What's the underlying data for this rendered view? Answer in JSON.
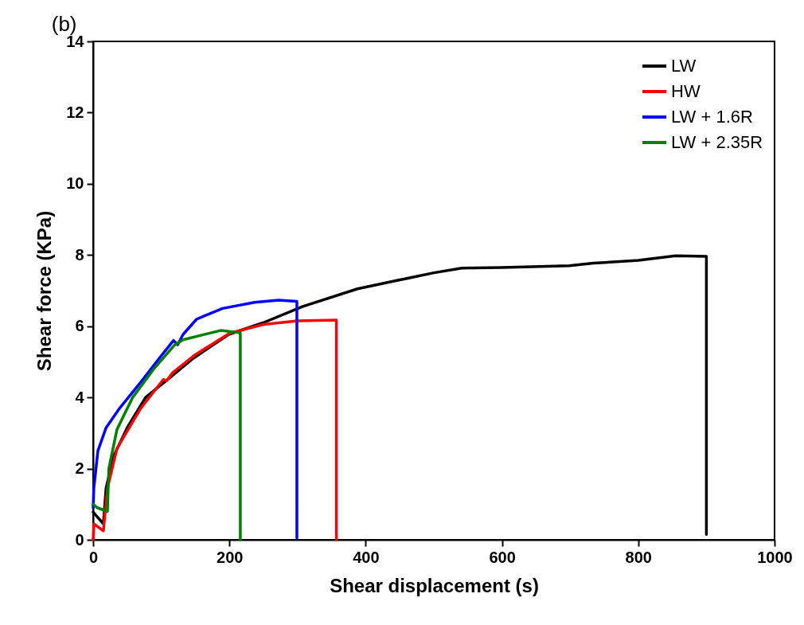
{
  "chart_data": {
    "type": "line",
    "title": "(b)",
    "xlabel": "Shear displacement (s)",
    "ylabel": "Shear force (KPa)",
    "xlim": [
      0,
      1000
    ],
    "ylim": [
      0,
      14
    ],
    "xticks": [
      0,
      200,
      400,
      600,
      800,
      1000
    ],
    "yticks": [
      0,
      2,
      4,
      6,
      8,
      10,
      12,
      14
    ],
    "grid": false,
    "legend": "top right",
    "marker": "none",
    "line_style": "solid",
    "series": [
      {
        "name": "LW",
        "color": "#000000",
        "x": [
          0,
          15,
          19,
          30,
          50,
          77,
          109,
          147,
          199,
          250,
          307,
          388,
          450,
          500,
          541,
          600,
          699,
          734,
          800,
          855,
          900,
          900
        ],
        "values": [
          0.78,
          0.45,
          1.45,
          2.35,
          3.15,
          4.0,
          4.5,
          5.1,
          5.77,
          6.1,
          6.55,
          7.05,
          7.3,
          7.5,
          7.63,
          7.65,
          7.7,
          7.77,
          7.85,
          7.98,
          7.96,
          0.15
        ]
      },
      {
        "name": "HW",
        "color": "#ff0000",
        "x": [
          0,
          1,
          15,
          21,
          35,
          70,
          103,
          108,
          117,
          150,
          200,
          250,
          300,
          357,
          357
        ],
        "values": [
          0,
          0.45,
          0.25,
          1.45,
          2.57,
          3.7,
          4.5,
          4.47,
          4.7,
          5.2,
          5.8,
          6.05,
          6.15,
          6.17,
          0
        ]
      },
      {
        "name": "LW + 1.6R",
        "color": "#0000ff",
        "x": [
          0,
          1,
          7,
          19,
          39,
          70,
          100,
          118,
          124,
          132,
          152,
          190,
          237,
          272,
          299,
          299
        ],
        "values": [
          0.9,
          1.45,
          2.5,
          3.15,
          3.7,
          4.43,
          5.17,
          5.6,
          5.48,
          5.77,
          6.2,
          6.5,
          6.67,
          6.73,
          6.7,
          0.05
        ]
      },
      {
        "name": "LW + 2.35R",
        "color": "#008000",
        "x": [
          0,
          6,
          21,
          23,
          35,
          58,
          89,
          120,
          132,
          187,
          214,
          216,
          216
        ],
        "values": [
          1.0,
          0.9,
          0.8,
          2.0,
          3.1,
          4.0,
          4.8,
          5.48,
          5.62,
          5.88,
          5.82,
          5.8,
          0
        ]
      }
    ]
  }
}
